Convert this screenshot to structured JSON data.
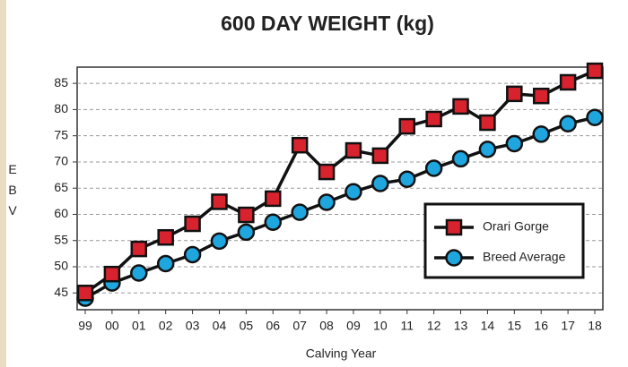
{
  "chart_data": {
    "type": "line",
    "title": "600 DAY WEIGHT (kg)",
    "x_label": "Calving Year",
    "y_label": "EBV",
    "categories": [
      "99",
      "00",
      "01",
      "02",
      "03",
      "04",
      "05",
      "06",
      "07",
      "08",
      "09",
      "10",
      "11",
      "12",
      "13",
      "14",
      "15",
      "16",
      "17",
      "18"
    ],
    "series": [
      {
        "name": "Orari Gorge",
        "color": "#d8232f",
        "marker": "square",
        "values": [
          45,
          48.6,
          53.4,
          55.6,
          58.2,
          62.4,
          59.9,
          63,
          73.2,
          68.1,
          72.2,
          71.2,
          76.8,
          78.2,
          80.6,
          77.5,
          83,
          82.6,
          85.2,
          87.4
        ]
      },
      {
        "name": "Breed Average",
        "color": "#1fa6df",
        "marker": "circle",
        "values": [
          44,
          46.9,
          48.8,
          50.6,
          52.3,
          54.9,
          56.6,
          58.5,
          60.4,
          62.3,
          64.3,
          65.9,
          66.7,
          68.8,
          70.6,
          72.4,
          73.5,
          75.3,
          77.3,
          78.5
        ]
      }
    ],
    "ylim": [
      41.8,
      88.1
    ],
    "yticks": [
      45,
      50,
      55,
      60,
      65,
      70,
      75,
      80,
      85
    ],
    "grid": true,
    "legend": "lower right"
  }
}
